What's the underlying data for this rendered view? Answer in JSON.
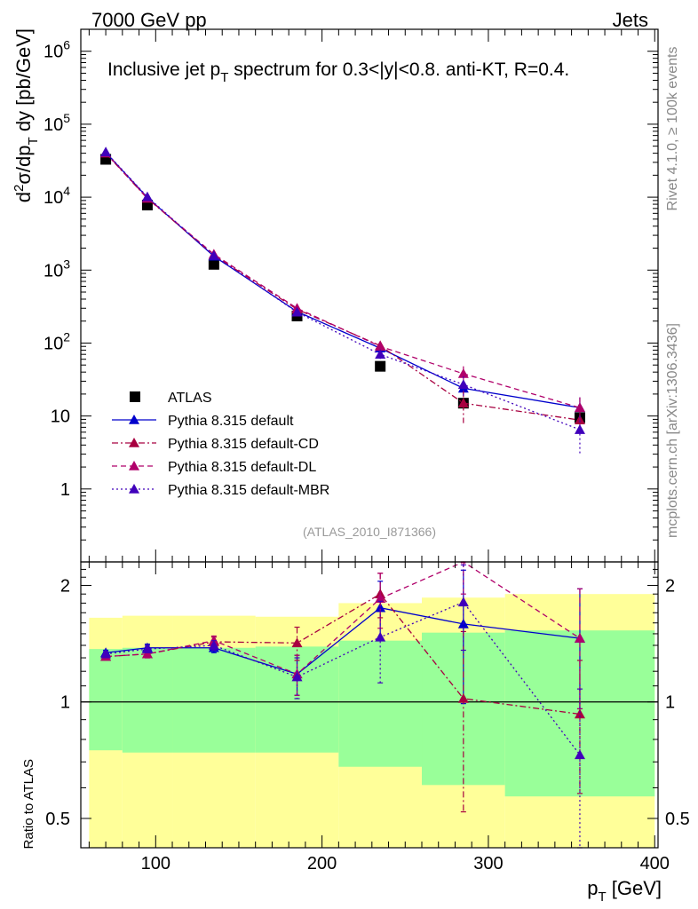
{
  "header": {
    "left": "7000 GeV pp",
    "right": "Jets"
  },
  "side_labels": {
    "rivet": "Rivet 4.1.0, ≥ 100k events",
    "mcplots": "mcplots.cern.ch [arXiv:1306.3436]"
  },
  "chart_data": [
    {
      "type": "line",
      "title": "Inclusive jet p_T spectrum for 0.3<|y|<0.8.  anti-KT, R=0.4.",
      "title_parts": {
        "pre": "Inclusive jet p",
        "sub": "T",
        "post": " spectrum for 0.3<|y|<0.8.  anti-KT, R=0.4."
      },
      "ylabel": "d²σ/dp_T dy [pb/GeV]",
      "ylabel_parts": {
        "a": "d",
        "sup": "2",
        "b": "σ/dp",
        "sub": "T",
        "c": " dy [pb/GeV]"
      },
      "yscale": "log",
      "ylim": [
        0.1,
        2000000
      ],
      "xlim": [
        55,
        402
      ],
      "yticks": [
        {
          "value": 1,
          "mant": "1",
          "exp": ""
        },
        {
          "value": 10,
          "mant": "10",
          "exp": ""
        },
        {
          "value": 100,
          "mant": "10",
          "exp": "2"
        },
        {
          "value": 1000,
          "mant": "10",
          "exp": "3"
        },
        {
          "value": 10000,
          "mant": "10",
          "exp": "4"
        },
        {
          "value": 100000,
          "mant": "10",
          "exp": "5"
        },
        {
          "value": 1000000,
          "mant": "10",
          "exp": "6"
        }
      ],
      "reference": "(ATLAS_2010_I871366)",
      "data": {
        "name": "ATLAS",
        "x": [
          70,
          95,
          135,
          185,
          235,
          285,
          355
        ],
        "y": [
          33000,
          7800,
          1200,
          235,
          48,
          15,
          9.5
        ],
        "xerr": [
          10,
          15,
          25,
          25,
          25,
          25,
          45
        ]
      },
      "series": [
        {
          "name": "Pythia 8.315 default",
          "color": "#0000cc",
          "dash": "solid",
          "marker": "triangle",
          "x": [
            70,
            95,
            135,
            185,
            235,
            285,
            355
          ],
          "y": [
            41000,
            9900,
            1550,
            270,
            85,
            24,
            13
          ],
          "err": [
            0,
            0,
            0,
            0,
            0,
            4,
            5
          ]
        },
        {
          "name": "Pythia 8.315 default-CD",
          "color": "#a80040",
          "dash": "dashdot",
          "marker": "triangle",
          "x": [
            70,
            95,
            135,
            185,
            235,
            285,
            355
          ],
          "y": [
            40000,
            9600,
            1600,
            290,
            92,
            15,
            8.8
          ],
          "err": [
            0,
            0,
            0,
            0,
            0,
            7,
            3
          ]
        },
        {
          "name": "Pythia 8.315 default-DL",
          "color": "#b0006a",
          "dash": "dashed",
          "marker": "triangle",
          "x": [
            70,
            95,
            135,
            185,
            235,
            285,
            355
          ],
          "y": [
            40500,
            9700,
            1650,
            300,
            90,
            38,
            13
          ],
          "err": [
            0,
            0,
            0,
            0,
            15,
            10,
            5
          ]
        },
        {
          "name": "Pythia 8.315 default-MBR",
          "color": "#4000bb",
          "dash": "dotted",
          "marker": "triangle",
          "x": [
            70,
            95,
            135,
            185,
            235,
            285,
            355
          ],
          "y": [
            41500,
            10100,
            1580,
            265,
            70,
            27,
            6.5
          ],
          "err": [
            0,
            0,
            0,
            0,
            10,
            8,
            3.5
          ]
        }
      ]
    },
    {
      "type": "line",
      "ylabel": "Ratio to ATLAS",
      "xlabel_parts": {
        "a": "p",
        "sub": "T",
        "b": " [GeV]"
      },
      "yscale": "log",
      "ylim": [
        0.42,
        2.3
      ],
      "xlim": [
        55,
        402
      ],
      "xticks": [
        100,
        200,
        300,
        400
      ],
      "yticks": [
        0.5,
        1,
        2
      ],
      "bands": {
        "edges": [
          60,
          80,
          110,
          160,
          210,
          260,
          310,
          400
        ],
        "outer_lo": [
          0.36,
          0.36,
          0.36,
          0.36,
          0.36,
          0.36,
          0.36
        ],
        "outer_hi": [
          1.65,
          1.67,
          1.67,
          1.66,
          1.8,
          1.86,
          1.9
        ],
        "inner_lo": [
          0.75,
          0.74,
          0.74,
          0.74,
          0.68,
          0.61,
          0.57
        ],
        "inner_hi": [
          1.37,
          1.38,
          1.38,
          1.39,
          1.44,
          1.51,
          1.53
        ],
        "outer_color": "#ffff99",
        "inner_color": "#99ff99"
      },
      "series": [
        {
          "name": "Pythia 8.315 default",
          "color": "#0000cc",
          "dash": "solid",
          "x": [
            70,
            95,
            135,
            185,
            235,
            285,
            355
          ],
          "y": [
            1.34,
            1.38,
            1.38,
            1.18,
            1.75,
            1.59,
            1.46
          ],
          "err": [
            0.02,
            0.03,
            0.04,
            0.14,
            0.3,
            0.6,
            0.5
          ]
        },
        {
          "name": "Pythia 8.315 default-CD",
          "color": "#a80040",
          "dash": "dashdot",
          "x": [
            70,
            95,
            135,
            185,
            235,
            285,
            355
          ],
          "y": [
            1.31,
            1.33,
            1.43,
            1.42,
            1.9,
            1.02,
            0.93
          ],
          "err": [
            0.02,
            0.03,
            0.04,
            0.14,
            0.25,
            0.5,
            0.35
          ]
        },
        {
          "name": "Pythia 8.315 default-DL",
          "color": "#b0006a",
          "dash": "dashed",
          "x": [
            70,
            95,
            135,
            185,
            235,
            285,
            355
          ],
          "y": [
            1.31,
            1.33,
            1.44,
            1.18,
            1.85,
            2.4,
            1.46
          ],
          "err": [
            0.02,
            0.03,
            0.04,
            0.14,
            0.3,
            0.5,
            0.5
          ]
        },
        {
          "name": "Pythia 8.315 default-MBR",
          "color": "#4000bb",
          "dash": "dotted",
          "x": [
            70,
            95,
            135,
            185,
            235,
            285,
            355
          ],
          "y": [
            1.33,
            1.37,
            1.4,
            1.16,
            1.47,
            1.81,
            0.73
          ],
          "err": [
            0.02,
            0.03,
            0.04,
            0.14,
            0.35,
            0.45,
            0.35
          ]
        }
      ]
    }
  ]
}
